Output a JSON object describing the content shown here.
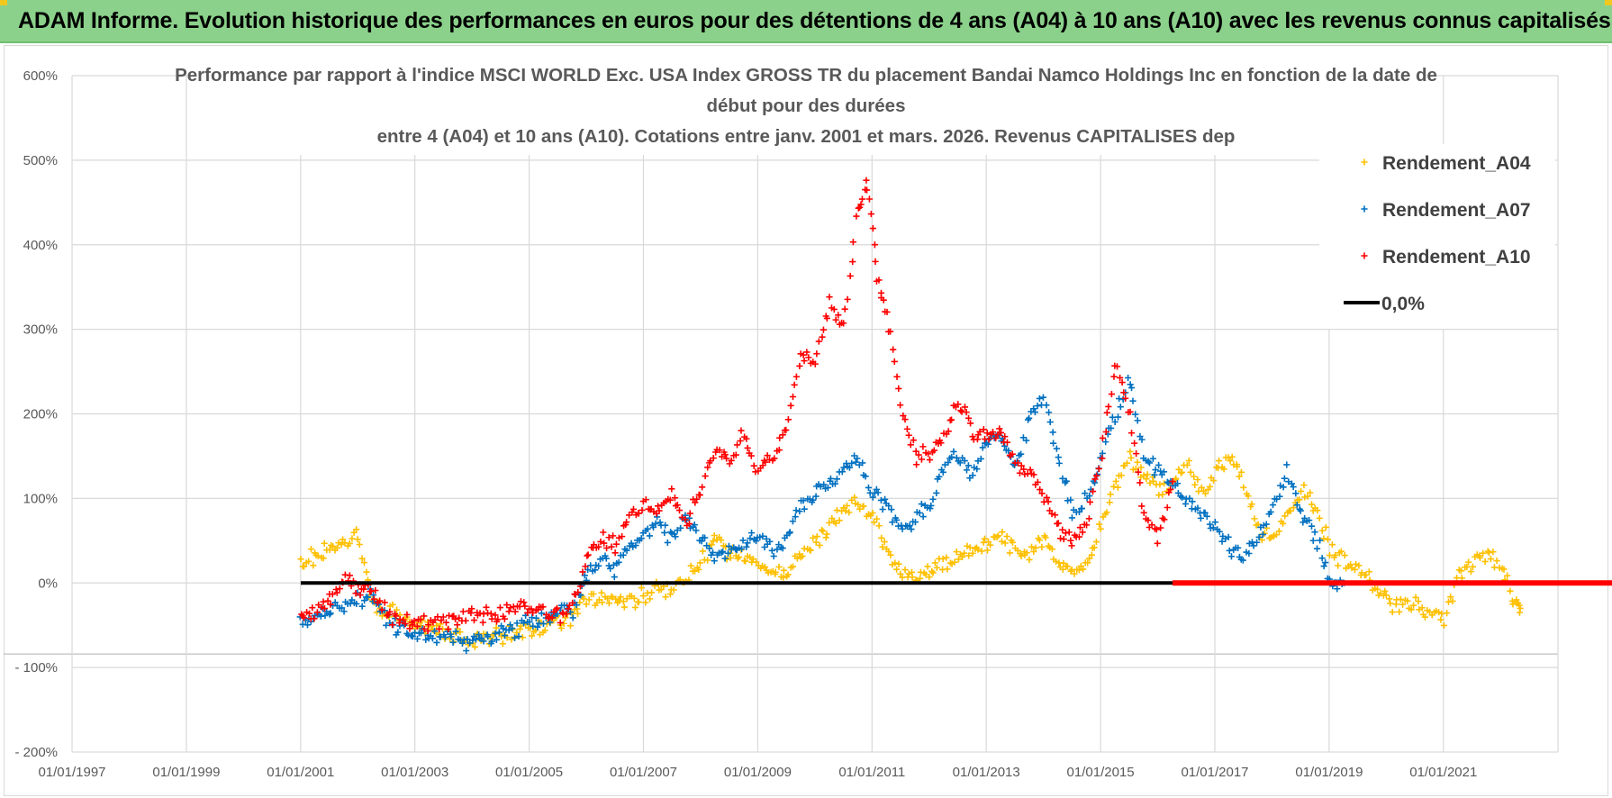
{
  "banner": {
    "title": "ADAM Informe. Evolution historique des performances en euros pour des détentions de 4 ans (A04) à 10 ans (A10) avec les revenus connus capitalisés"
  },
  "colors": {
    "banner_bg": "#8bd18b",
    "A04": "#ffc000",
    "A07": "#0070c0",
    "A10": "#ff0000",
    "zero": "#000000",
    "grid": "#d9d9d9"
  },
  "chart_data": {
    "type": "scatter",
    "title_lines": [
      "Performance par rapport à l'indice MSCI WORLD Exc. USA Index GROSS TR  du placement Bandai Namco Holdings Inc en fonction de la date de",
      "début pour des durées",
      "entre 4 (A04) et 10 ans (A10). Cotations entre janv. 2001 et mars. 2026. Revenus CAPITALISES dep"
    ],
    "xlabel": "",
    "ylabel": "",
    "x_range": [
      "1997-01-01",
      "2023-12-31"
    ],
    "x_tick_labels": [
      "01/01/1997",
      "01/01/1999",
      "01/01/2001",
      "01/01/2003",
      "01/01/2005",
      "01/01/2007",
      "01/01/2009",
      "01/01/2011",
      "01/01/2013",
      "01/01/2015",
      "01/01/2017",
      "01/01/2019",
      "01/01/2021"
    ],
    "y_range": [
      -200,
      600
    ],
    "y_unit": "%",
    "y_tick_labels": [
      "600%",
      "500%",
      "400%",
      "300%",
      "200%",
      "100%",
      "0%",
      "- 100%",
      "- 200%"
    ],
    "grid": true,
    "legend_position": "top-right",
    "legend": [
      "Rendement_A04",
      "Rendement_A07",
      "Rendement_A10",
      "0,0%"
    ],
    "series": [
      {
        "name": "Rendement_A04",
        "marker": "+",
        "color": "#ffc000",
        "points": [
          [
            "2001-01-01",
            28
          ],
          [
            "2001-04-01",
            30
          ],
          [
            "2001-07-01",
            42
          ],
          [
            "2001-10-01",
            48
          ],
          [
            "2002-01-01",
            55
          ],
          [
            "2002-04-01",
            -25
          ],
          [
            "2002-07-01",
            -32
          ],
          [
            "2002-10-01",
            -40
          ],
          [
            "2003-01-01",
            -50
          ],
          [
            "2003-04-01",
            -55
          ],
          [
            "2003-07-01",
            -60
          ],
          [
            "2003-10-01",
            -64
          ],
          [
            "2004-01-01",
            -65
          ],
          [
            "2004-04-01",
            -66
          ],
          [
            "2004-07-01",
            -62
          ],
          [
            "2004-10-01",
            -60
          ],
          [
            "2005-01-01",
            -55
          ],
          [
            "2005-04-01",
            -50
          ],
          [
            "2005-07-01",
            -45
          ],
          [
            "2005-10-01",
            -42
          ],
          [
            "2006-01-01",
            -22
          ],
          [
            "2006-04-01",
            -18
          ],
          [
            "2006-07-01",
            -20
          ],
          [
            "2006-10-01",
            -25
          ],
          [
            "2007-01-01",
            -15
          ],
          [
            "2007-04-01",
            -5
          ],
          [
            "2007-07-01",
            -10
          ],
          [
            "2007-10-01",
            5
          ],
          [
            "2008-01-01",
            25
          ],
          [
            "2008-04-01",
            50
          ],
          [
            "2008-07-01",
            35
          ],
          [
            "2008-10-01",
            30
          ],
          [
            "2009-01-01",
            20
          ],
          [
            "2009-04-01",
            10
          ],
          [
            "2009-07-01",
            15
          ],
          [
            "2009-10-01",
            30
          ],
          [
            "2010-01-01",
            45
          ],
          [
            "2010-04-01",
            70
          ],
          [
            "2010-07-01",
            85
          ],
          [
            "2010-10-01",
            95
          ],
          [
            "2011-01-01",
            80
          ],
          [
            "2011-04-01",
            40
          ],
          [
            "2011-07-01",
            15
          ],
          [
            "2011-10-01",
            5
          ],
          [
            "2012-01-01",
            12
          ],
          [
            "2012-04-01",
            20
          ],
          [
            "2012-07-01",
            35
          ],
          [
            "2012-10-01",
            40
          ],
          [
            "2013-01-01",
            45
          ],
          [
            "2013-04-01",
            55
          ],
          [
            "2013-07-01",
            40
          ],
          [
            "2013-10-01",
            30
          ],
          [
            "2014-01-01",
            55
          ],
          [
            "2014-04-01",
            20
          ],
          [
            "2014-07-01",
            10
          ],
          [
            "2014-10-01",
            20
          ],
          [
            "2015-01-01",
            70
          ],
          [
            "2015-04-01",
            120
          ],
          [
            "2015-07-01",
            150
          ],
          [
            "2015-10-01",
            130
          ],
          [
            "2016-01-01",
            110
          ],
          [
            "2016-04-01",
            120
          ],
          [
            "2016-07-01",
            140
          ],
          [
            "2016-10-01",
            110
          ],
          [
            "2017-01-01",
            130
          ],
          [
            "2017-04-01",
            150
          ],
          [
            "2017-07-01",
            120
          ],
          [
            "2017-10-01",
            60
          ],
          [
            "2018-01-01",
            50
          ],
          [
            "2018-04-01",
            80
          ],
          [
            "2018-07-01",
            110
          ],
          [
            "2018-10-01",
            90
          ],
          [
            "2019-01-01",
            40
          ],
          [
            "2019-04-01",
            25
          ],
          [
            "2019-07-01",
            20
          ],
          [
            "2019-10-01",
            0
          ],
          [
            "2020-01-01",
            -20
          ],
          [
            "2020-04-01",
            -30
          ],
          [
            "2020-07-01",
            -25
          ],
          [
            "2020-10-01",
            -35
          ],
          [
            "2021-01-01",
            -40
          ],
          [
            "2021-04-01",
            10
          ],
          [
            "2021-07-01",
            25
          ],
          [
            "2021-10-01",
            35
          ],
          [
            "2022-01-01",
            15
          ],
          [
            "2022-04-01",
            -25
          ],
          [
            "2022-05-01",
            -30
          ]
        ]
      },
      {
        "name": "Rendement_A07",
        "marker": "+",
        "color": "#0070c0",
        "points": [
          [
            "2001-01-01",
            -45
          ],
          [
            "2001-04-01",
            -38
          ],
          [
            "2001-07-01",
            -35
          ],
          [
            "2001-10-01",
            -28
          ],
          [
            "2002-01-01",
            -20
          ],
          [
            "2002-04-01",
            -15
          ],
          [
            "2002-07-01",
            -45
          ],
          [
            "2002-10-01",
            -55
          ],
          [
            "2003-01-01",
            -60
          ],
          [
            "2003-04-01",
            -62
          ],
          [
            "2003-07-01",
            -65
          ],
          [
            "2003-10-01",
            -68
          ],
          [
            "2004-01-01",
            -70
          ],
          [
            "2004-04-01",
            -65
          ],
          [
            "2004-07-01",
            -60
          ],
          [
            "2004-10-01",
            -55
          ],
          [
            "2005-01-01",
            -45
          ],
          [
            "2005-04-01",
            -40
          ],
          [
            "2005-07-01",
            -35
          ],
          [
            "2005-10-01",
            -30
          ],
          [
            "2006-01-01",
            10
          ],
          [
            "2006-04-01",
            30
          ],
          [
            "2006-07-01",
            15
          ],
          [
            "2006-10-01",
            40
          ],
          [
            "2007-01-01",
            60
          ],
          [
            "2007-04-01",
            70
          ],
          [
            "2007-07-01",
            55
          ],
          [
            "2007-10-01",
            80
          ],
          [
            "2008-01-01",
            50
          ],
          [
            "2008-04-01",
            30
          ],
          [
            "2008-07-01",
            40
          ],
          [
            "2008-10-01",
            45
          ],
          [
            "2009-01-01",
            60
          ],
          [
            "2009-04-01",
            35
          ],
          [
            "2009-07-01",
            55
          ],
          [
            "2009-10-01",
            90
          ],
          [
            "2010-01-01",
            110
          ],
          [
            "2010-04-01",
            115
          ],
          [
            "2010-07-01",
            130
          ],
          [
            "2010-10-01",
            150
          ],
          [
            "2011-01-01",
            110
          ],
          [
            "2011-04-01",
            90
          ],
          [
            "2011-07-01",
            65
          ],
          [
            "2011-10-01",
            75
          ],
          [
            "2012-01-01",
            95
          ],
          [
            "2012-04-01",
            140
          ],
          [
            "2012-07-01",
            150
          ],
          [
            "2012-10-01",
            130
          ],
          [
            "2013-01-01",
            165
          ],
          [
            "2013-04-01",
            175
          ],
          [
            "2013-07-01",
            140
          ],
          [
            "2013-10-01",
            190
          ],
          [
            "2014-01-01",
            220
          ],
          [
            "2014-04-01",
            150
          ],
          [
            "2014-07-01",
            80
          ],
          [
            "2014-10-01",
            100
          ],
          [
            "2015-01-01",
            150
          ],
          [
            "2015-04-01",
            200
          ],
          [
            "2015-07-01",
            240
          ],
          [
            "2015-10-01",
            150
          ],
          [
            "2016-01-01",
            130
          ],
          [
            "2016-04-01",
            115
          ],
          [
            "2016-07-01",
            100
          ],
          [
            "2016-10-01",
            80
          ],
          [
            "2017-01-01",
            70
          ],
          [
            "2017-04-01",
            40
          ],
          [
            "2017-07-01",
            30
          ],
          [
            "2017-10-01",
            50
          ],
          [
            "2018-01-01",
            90
          ],
          [
            "2018-04-01",
            130
          ],
          [
            "2018-07-01",
            80
          ],
          [
            "2018-10-01",
            55
          ],
          [
            "2019-01-01",
            5
          ],
          [
            "2019-04-01",
            0
          ]
        ]
      },
      {
        "name": "Rendement_A10",
        "marker": "+",
        "color": "#ff0000",
        "points": [
          [
            "2001-01-01",
            -40
          ],
          [
            "2001-04-01",
            -35
          ],
          [
            "2001-07-01",
            -20
          ],
          [
            "2001-10-01",
            0
          ],
          [
            "2002-01-01",
            -5
          ],
          [
            "2002-04-01",
            -10
          ],
          [
            "2002-07-01",
            -35
          ],
          [
            "2002-10-01",
            -45
          ],
          [
            "2003-01-01",
            -48
          ],
          [
            "2003-04-01",
            -50
          ],
          [
            "2003-07-01",
            -48
          ],
          [
            "2003-10-01",
            -45
          ],
          [
            "2004-01-01",
            -40
          ],
          [
            "2004-04-01",
            -35
          ],
          [
            "2004-07-01",
            -38
          ],
          [
            "2004-10-01",
            -25
          ],
          [
            "2005-01-01",
            -30
          ],
          [
            "2005-04-01",
            -35
          ],
          [
            "2005-07-01",
            -40
          ],
          [
            "2005-10-01",
            -30
          ],
          [
            "2006-01-01",
            30
          ],
          [
            "2006-04-01",
            50
          ],
          [
            "2006-07-01",
            45
          ],
          [
            "2006-10-01",
            80
          ],
          [
            "2007-01-01",
            90
          ],
          [
            "2007-04-01",
            85
          ],
          [
            "2007-07-01",
            105
          ],
          [
            "2007-10-01",
            75
          ],
          [
            "2008-01-01",
            110
          ],
          [
            "2008-04-01",
            160
          ],
          [
            "2008-07-01",
            140
          ],
          [
            "2008-10-01",
            175
          ],
          [
            "2009-01-01",
            130
          ],
          [
            "2009-04-01",
            150
          ],
          [
            "2009-07-01",
            180
          ],
          [
            "2009-10-01",
            270
          ],
          [
            "2010-01-01",
            260
          ],
          [
            "2010-04-01",
            330
          ],
          [
            "2010-07-01",
            300
          ],
          [
            "2010-10-01",
            450
          ],
          [
            "2010-12-01",
            470
          ],
          [
            "2011-02-01",
            360
          ],
          [
            "2011-04-01",
            320
          ],
          [
            "2011-07-01",
            210
          ],
          [
            "2011-10-01",
            150
          ],
          [
            "2012-01-01",
            150
          ],
          [
            "2012-04-01",
            170
          ],
          [
            "2012-07-01",
            220
          ],
          [
            "2012-10-01",
            180
          ],
          [
            "2013-01-01",
            170
          ],
          [
            "2013-04-01",
            180
          ],
          [
            "2013-07-01",
            140
          ],
          [
            "2013-10-01",
            130
          ],
          [
            "2014-01-01",
            100
          ],
          [
            "2014-04-01",
            60
          ],
          [
            "2014-07-01",
            50
          ],
          [
            "2014-10-01",
            70
          ],
          [
            "2015-01-01",
            150
          ],
          [
            "2015-04-01",
            260
          ],
          [
            "2015-07-01",
            200
          ],
          [
            "2015-10-01",
            80
          ],
          [
            "2016-01-01",
            55
          ],
          [
            "2016-04-01",
            120
          ]
        ]
      },
      {
        "name": "0,0%",
        "marker": "line",
        "color": "#000000",
        "points": [
          [
            "2001-01-01",
            0
          ],
          [
            "2016-04-01",
            0
          ]
        ]
      },
      {
        "name": "A10 zero segment",
        "marker": "line",
        "color": "#ff0000",
        "points": [
          [
            "2016-04-01",
            0
          ],
          [
            "2023-12-31",
            0
          ]
        ]
      }
    ]
  }
}
